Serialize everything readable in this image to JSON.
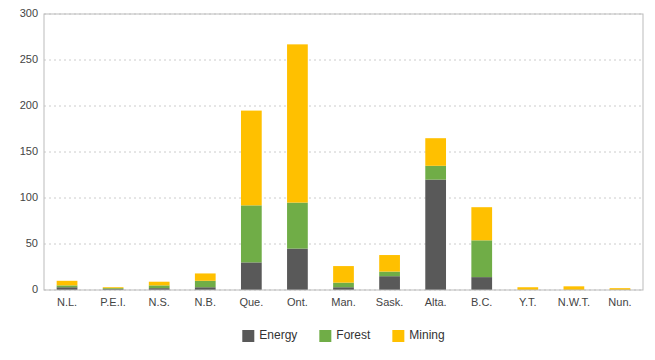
{
  "chart_data": {
    "type": "bar",
    "stacked": true,
    "categories": [
      "N.L.",
      "P.E.I.",
      "N.S.",
      "N.B.",
      "Que.",
      "Ont.",
      "Man.",
      "Sask.",
      "Alta.",
      "B.C.",
      "Y.T.",
      "N.W.T.",
      "Nun."
    ],
    "series": [
      {
        "name": "Energy",
        "color": "#595959",
        "values": [
          3,
          1,
          2,
          3,
          30,
          45,
          3,
          15,
          120,
          14,
          0,
          0,
          0
        ]
      },
      {
        "name": "Forest",
        "color": "#70ad47",
        "values": [
          2,
          1,
          3,
          7,
          62,
          50,
          5,
          5,
          15,
          40,
          0,
          0,
          0
        ]
      },
      {
        "name": "Mining",
        "color": "#ffc000",
        "values": [
          5,
          1,
          4,
          8,
          103,
          172,
          18,
          18,
          30,
          36,
          3,
          4,
          2
        ]
      }
    ],
    "ylim": [
      0,
      300
    ],
    "yticks": [
      0,
      50,
      100,
      150,
      200,
      250,
      300
    ],
    "grid": true,
    "legend": "bottom"
  }
}
